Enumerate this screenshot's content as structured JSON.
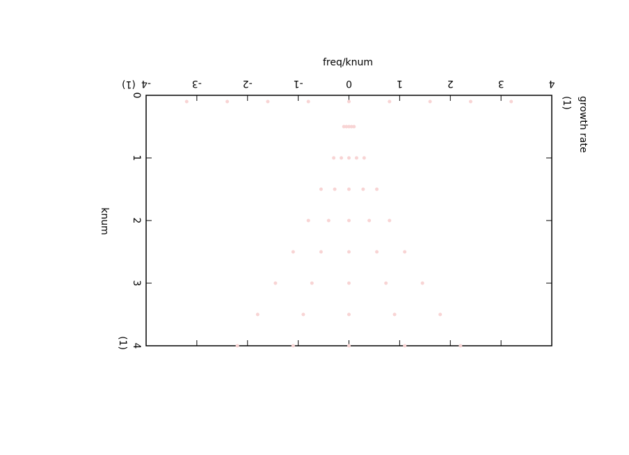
{
  "chart_data": {
    "type": "scatter",
    "x_label": "freq/knum",
    "x_unit": "(1)",
    "y_label": "knum",
    "y_unit": "(1)",
    "y2_label": "growth rate",
    "y2_unit": "(1)",
    "xlim": [
      -4,
      4
    ],
    "xticks": [
      -4,
      -3,
      -2,
      -1,
      0,
      1,
      2,
      3,
      4
    ],
    "ylim": [
      0,
      4
    ],
    "yticks": [
      0,
      1,
      2,
      3,
      4
    ],
    "series": [
      {
        "color": "#f8d4d4",
        "x": [
          -3.2,
          -2.4,
          -1.6,
          -0.8,
          0,
          0.8,
          1.6,
          2.4,
          3.2,
          -0.1,
          -0.05,
          0,
          0.05,
          0.1,
          -0.3,
          -0.15,
          0,
          0.15,
          0.3,
          -0.55,
          -0.28,
          0,
          0.28,
          0.55,
          -0.8,
          -0.4,
          0,
          0.4,
          0.8,
          -1.1,
          -0.55,
          0,
          0.55,
          1.1,
          -1.45,
          -0.73,
          0,
          0.73,
          1.45,
          -1.8,
          -0.9,
          0,
          0.9,
          1.8,
          -2.2,
          -1.1,
          0,
          1.1,
          2.2
        ],
        "y": [
          0.1,
          0.1,
          0.1,
          0.1,
          0.1,
          0.1,
          0.1,
          0.1,
          0.1,
          0.5,
          0.5,
          0.5,
          0.5,
          0.5,
          1,
          1,
          1,
          1,
          1,
          1.5,
          1.5,
          1.5,
          1.5,
          1.5,
          2,
          2,
          2,
          2,
          2,
          2.5,
          2.5,
          2.5,
          2.5,
          2.5,
          3,
          3,
          3,
          3,
          3,
          3.5,
          3.5,
          3.5,
          3.5,
          3.5,
          4,
          4,
          4,
          4,
          4
        ]
      }
    ]
  }
}
